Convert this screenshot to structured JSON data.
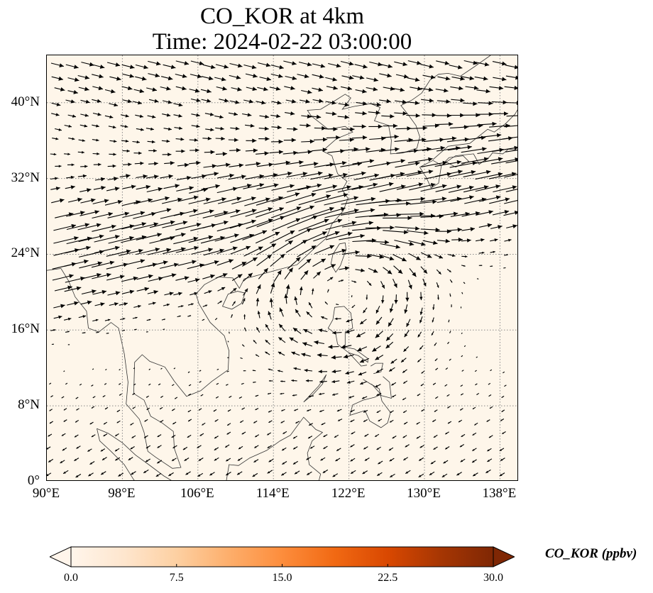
{
  "title": {
    "line1": "CO_KOR at 4km",
    "line2": "Time: 2024-02-22 03:00:00"
  },
  "map": {
    "extent": {
      "lon": [
        90,
        140
      ],
      "lat": [
        0,
        45
      ]
    },
    "background_color": "#fef6ea",
    "gridline_color": "#888888",
    "coastline_color": "#333333",
    "arrow_color": "#000000",
    "lat_ticks": [
      {
        "value": 0,
        "label": "0°"
      },
      {
        "value": 8,
        "label": "8°N"
      },
      {
        "value": 16,
        "label": "16°N"
      },
      {
        "value": 24,
        "label": "24°N"
      },
      {
        "value": 32,
        "label": "32°N"
      },
      {
        "value": 40,
        "label": "40°N"
      }
    ],
    "lon_ticks": [
      {
        "value": 90,
        "label": "90°E"
      },
      {
        "value": 98,
        "label": "98°E"
      },
      {
        "value": 106,
        "label": "106°E"
      },
      {
        "value": 114,
        "label": "114°E"
      },
      {
        "value": 122,
        "label": "122°E"
      },
      {
        "value": 130,
        "label": "130°E"
      },
      {
        "value": 138,
        "label": "138°E"
      }
    ]
  },
  "colorbar": {
    "label": "CO_KOR (ppbv)",
    "min": 0.0,
    "max": 30.0,
    "extend": "both",
    "colormap": [
      "#fff5eb",
      "#fee6ce",
      "#fdd0a2",
      "#fdae6b",
      "#fd8d3c",
      "#f16913",
      "#d94801",
      "#a63603",
      "#7f2704"
    ],
    "ticks": [
      {
        "value": 0.0,
        "label": "0.0"
      },
      {
        "value": 7.5,
        "label": "7.5"
      },
      {
        "value": 15.0,
        "label": "15.0"
      },
      {
        "value": 22.5,
        "label": "22.5"
      },
      {
        "value": 30.0,
        "label": "30.0"
      }
    ]
  }
}
